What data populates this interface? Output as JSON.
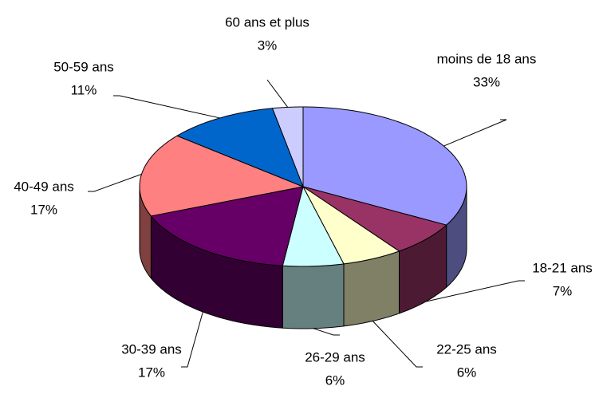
{
  "chart_data": {
    "type": "pie3d",
    "categories": [
      "moins de 18 ans",
      "18-21 ans",
      "22-25 ans",
      "26-29 ans",
      "30-39 ans",
      "40-49 ans",
      "50-59 ans",
      "60 ans et plus"
    ],
    "values": [
      33,
      7,
      6,
      6,
      17,
      17,
      11,
      3
    ],
    "value_labels": [
      "33%",
      "7%",
      "6%",
      "6%",
      "17%",
      "17%",
      "11%",
      "3%"
    ],
    "colors": [
      "#9999ff",
      "#993366",
      "#ffffcc",
      "#ccffff",
      "#660066",
      "#ff8080",
      "#0066cc",
      "#ccccff"
    ]
  }
}
